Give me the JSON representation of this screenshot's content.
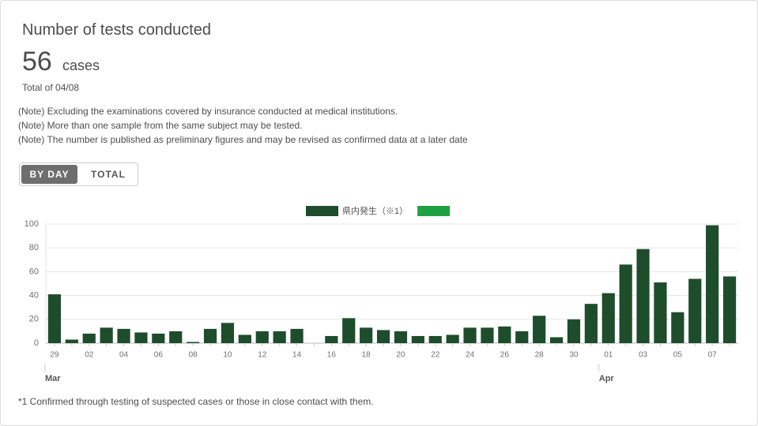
{
  "card": {
    "title": "Number of tests conducted",
    "value": 56,
    "unit": "cases",
    "date_note": "Total of 04/08",
    "notes": [
      "(Note) Excluding the examinations covered by insurance conducted at medical institutions.",
      "(Note) More than one sample from the same subject may be tested.",
      "(Note) The number is published as preliminary figures and may be revised as confirmed data at a later date"
    ],
    "toggle": [
      "BY DAY",
      "TOTAL"
    ],
    "footnote": "*1 Confirmed through testing of suspected cases or those in close contact with them."
  },
  "chart_data": {
    "type": "bar",
    "categories": [
      "29",
      null,
      "02",
      null,
      "04",
      null,
      "06",
      null,
      "08",
      null,
      "10",
      null,
      "12",
      null,
      "14",
      null,
      "16",
      null,
      "18",
      null,
      "20",
      null,
      "22",
      null,
      "24",
      null,
      "26",
      null,
      "28",
      null,
      "30",
      null,
      "01",
      null,
      "03",
      null,
      "05",
      null,
      "07",
      null
    ],
    "months": [
      "Mar",
      null,
      null,
      null,
      null,
      null,
      null,
      null,
      null,
      null,
      null,
      null,
      null,
      null,
      null,
      null,
      null,
      null,
      null,
      null,
      null,
      null,
      null,
      null,
      null,
      null,
      null,
      null,
      null,
      null,
      null,
      null,
      "Apr",
      null,
      null,
      null,
      null,
      null,
      null,
      null
    ],
    "series": [
      {
        "name": "県内発生（※1）",
        "color": "#1e4d2b",
        "values": [
          41,
          3,
          8,
          13,
          12,
          9,
          8,
          10,
          1,
          12,
          17,
          7,
          10,
          10,
          12,
          0,
          6,
          21,
          13,
          11,
          10,
          6,
          6,
          7,
          13,
          13,
          14,
          10,
          23,
          5,
          20,
          33,
          42,
          66,
          79,
          51,
          26,
          54,
          99,
          56
        ]
      },
      {
        "color": "#1fa043",
        "values": [
          null,
          null,
          null,
          null,
          null,
          null,
          null,
          null,
          null,
          null,
          null,
          null,
          null,
          null,
          null,
          null,
          null,
          null,
          null,
          null,
          null,
          null,
          null,
          null,
          null,
          null,
          null,
          null,
          null,
          null,
          null,
          null,
          null,
          null,
          null,
          null,
          null,
          null,
          null,
          null
        ]
      }
    ],
    "ylim": [
      0,
      100
    ],
    "yticks": [
      0,
      20,
      40,
      60,
      80,
      100
    ],
    "grid": true
  }
}
